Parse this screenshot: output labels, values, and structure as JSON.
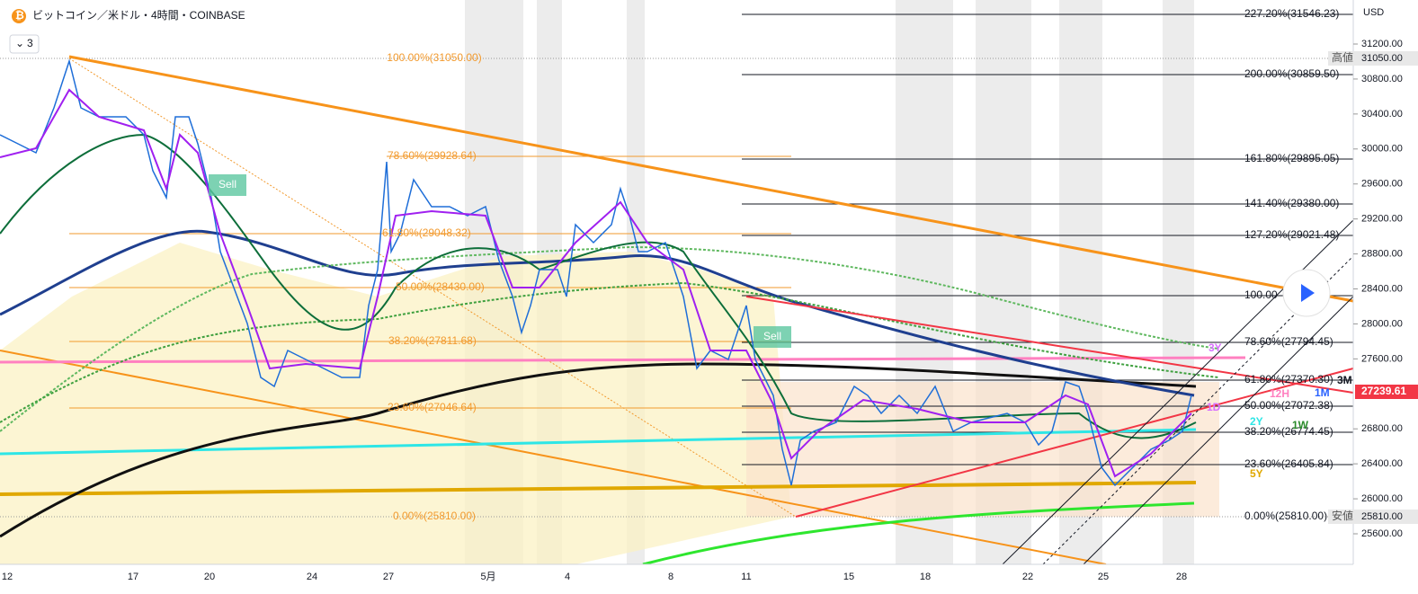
{
  "header": {
    "title": "ビットコイン／米ドル・4時間・COINBASE",
    "indicator_count": "3"
  },
  "price_axis": {
    "currency": "USD",
    "ticks": [
      "31200.00",
      "30800.00",
      "30400.00",
      "30000.00",
      "29600.00",
      "29200.00",
      "28800.00",
      "28400.00",
      "28000.00",
      "27600.00",
      "26800.00",
      "26400.00",
      "26000.00",
      "25600.00"
    ],
    "high": {
      "tag": "高値",
      "price": "31050.00"
    },
    "low": {
      "tag": "安値",
      "price": "25810.00"
    },
    "last_price": "27239.61"
  },
  "time_axis": {
    "labels": [
      "12",
      "17",
      "20",
      "24",
      "27",
      "5月",
      "4",
      "8",
      "11",
      "15",
      "18",
      "22",
      "25",
      "28"
    ]
  },
  "fib_left": [
    "100.00%(31050.00)",
    "78.60%(29928.64)",
    "61.80%(29048.32)",
    "50.00%(28430.00)",
    "38.20%(27811.68)",
    "23.60%(27046.64)",
    "0.00%(25810.00)"
  ],
  "fib_right": [
    "227.20%(31546.23)",
    "200.00%(30859.50)",
    "161.80%(29895.05)",
    "141.40%(29380.00)",
    "127.20%(29021.48)",
    "100.00",
    "78.60%(27794.45)",
    "61.80%(27370.30)",
    "50.00%(27072.38)",
    "38.20%(26774.45)",
    "23.60%(26405.84)",
    "0.00%(25810.00)"
  ],
  "signals": [
    "Sell",
    "Sell"
  ],
  "period_labels": [
    "3Y",
    "12H",
    "1M",
    "1D",
    "2Y",
    "1W",
    "5Y",
    "3M"
  ]
}
